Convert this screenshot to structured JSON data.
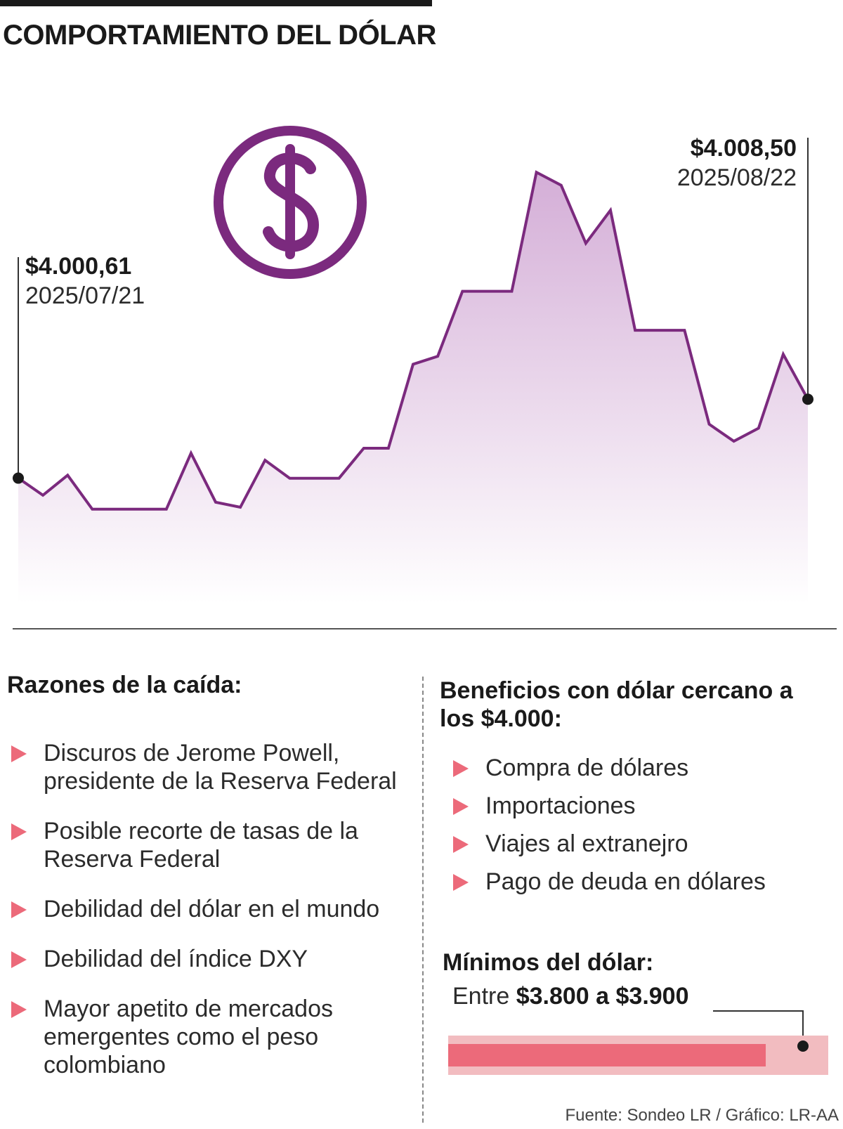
{
  "title": "COMPORTAMIENTO DEL DÓLAR",
  "chart_data": {
    "type": "area",
    "title": "COMPORTAMIENTO DEL DÓLAR",
    "xlabel": "",
    "ylabel": "",
    "x": [
      "2025/07/21",
      "",
      "",
      "",
      "",
      "",
      "",
      "",
      "",
      "",
      "",
      "",
      "",
      "",
      "",
      "",
      "",
      "",
      "",
      "",
      "",
      "",
      "",
      "",
      "",
      "",
      "",
      "",
      "",
      "",
      "",
      "",
      "2025/08/22"
    ],
    "values": [
      4000.61,
      3998.9,
      4000.9,
      3997.5,
      3997.5,
      3997.5,
      3997.5,
      4003.1,
      3998.2,
      3997.7,
      4002.4,
      4000.6,
      4000.6,
      4000.6,
      4003.6,
      4003.6,
      4012.0,
      4012.8,
      4019.3,
      4019.3,
      4019.3,
      4031.2,
      4029.9,
      4024.1,
      4027.4,
      4015.4,
      4015.4,
      4015.4,
      4006.0,
      4004.3,
      4005.6,
      4013.0,
      4008.5
    ],
    "ylim": [
      3988,
      4040
    ],
    "grid": false,
    "legend": false,
    "annotations": [
      {
        "value": "$4.000,61",
        "date": "2025/07/21"
      },
      {
        "value": "$4.008,50",
        "date": "2025/08/22"
      }
    ],
    "line_color": "#7b2a7e",
    "fill_color": "#d8b4da"
  },
  "icon": "dollar-circle-icon",
  "reasons": {
    "title": "Razones de la caída:",
    "items": [
      "Discuros de Jerome Powell, presidente de la Reserva Federal",
      "Posible recorte de tasas de la Reserva Federal",
      "Debilidad del dólar en el mundo",
      "Debilidad del índice DXY",
      "Mayor apetito de mercados emergentes como el peso colombiano"
    ]
  },
  "benefits": {
    "title": "Beneficios con dólar cercano a los $4.000:",
    "items": [
      "Compra de dólares",
      "Importaciones",
      "Viajes al extranejro",
      "Pago de deuda en dólares"
    ]
  },
  "minimos": {
    "title": "Mínimos del dólar:",
    "prefix": "Entre",
    "range": "$3.800 a $3.900",
    "bar_color": "#ec6a7a",
    "bar_bg_color": "#f2bcc0"
  },
  "source": "Fuente: Sondeo LR / Gráfico: LR-AA"
}
